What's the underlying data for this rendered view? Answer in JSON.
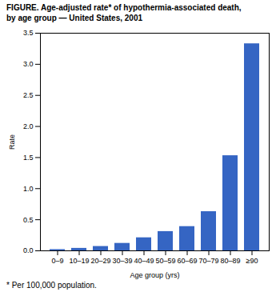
{
  "chart_data": {
    "type": "bar",
    "title": "FIGURE. Age-adjusted rate* of hypothermia-associated death,\nby age group — United States, 2001",
    "caption": "* Per 100,000 population.",
    "x_label": "Age group (yrs)",
    "y_label": "Rate",
    "categories": [
      "0–9",
      "10–19",
      "20–29",
      "30–39",
      "40–49",
      "50–59",
      "60–69",
      "70–79",
      "80–89",
      "≥90"
    ],
    "values": [
      0.02,
      0.04,
      0.07,
      0.12,
      0.21,
      0.31,
      0.39,
      0.63,
      1.53,
      3.33
    ],
    "color": "#3565c3",
    "ylim": [
      0,
      3.5
    ],
    "yticks": [
      {
        "value": 0.0,
        "label": "0.0"
      },
      0.5,
      {
        "value": 1.0,
        "label": "1.0"
      },
      1.5,
      {
        "value": 2.0,
        "label": "2.0"
      },
      2.5,
      {
        "value": 3.0,
        "label": "3.0"
      },
      3.5
    ],
    "grid": false
  }
}
